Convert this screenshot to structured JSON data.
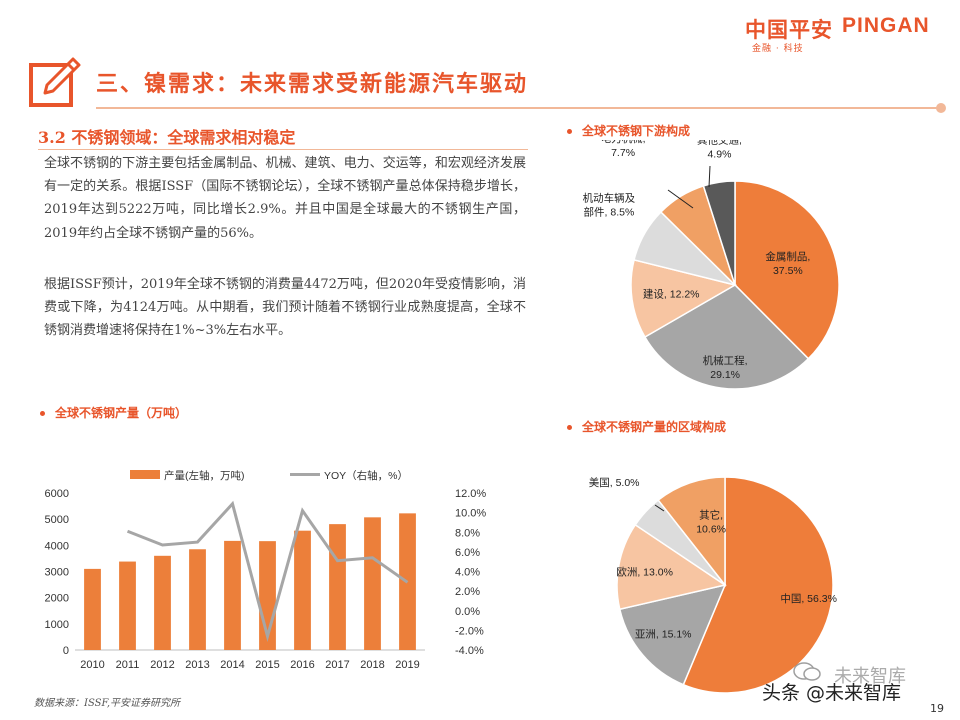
{
  "brand": {
    "name_cn": "中国平安",
    "name_en": "PINGAN",
    "tagline": "金融 · 科技"
  },
  "header": {
    "title": "三、镍需求：未来需求受新能源汽车驱动"
  },
  "section": {
    "title": "3.2 不锈钢领域：全球需求相对稳定",
    "paragraph1": "全球不锈钢的下游主要包括金属制品、机械、建筑、电力、交运等，和宏观经济发展有一定的关系。根据ISSF（国际不锈钢论坛），全球不锈钢产量总体保持稳步增长，2019年达到5222万吨，同比增长2.9%。并且中国是全球最大的不锈钢生产国，2019年约占全球不锈钢产量的56%。",
    "paragraph2": "根据ISSF预计，2019年全球不锈钢的消费量4472万吨，但2020年受疫情影响，消费或下降，为4124万吨。从中期看，我们预计随着不锈钢行业成熟度提高，全球不锈钢消费增速将保持在1%~3%左右水平。"
  },
  "chart_titles": {
    "production": "全球不锈钢产量（万吨）",
    "downstream": "全球不锈钢下游构成",
    "region": "全球不锈钢产量的区域构成"
  },
  "source_note": "数据来源：ISSF,平安证券研究所",
  "page_number": "19",
  "watermark": {
    "line1": "头条 @未来智库",
    "line2": "未来智库"
  },
  "colors": {
    "accent": "#e8552b",
    "bar": "#ec7f3a",
    "line": "#a6a6a6"
  },
  "chart_data": [
    {
      "type": "bar",
      "categories": [
        "2010",
        "2011",
        "2012",
        "2013",
        "2014",
        "2015",
        "2016",
        "2017",
        "2018",
        "2019"
      ],
      "series": [
        {
          "name": "产量(左轴，万吨)",
          "type": "bar",
          "axis": "left",
          "color": "#ec7f3a",
          "values": [
            3100,
            3380,
            3600,
            3850,
            4170,
            4160,
            4560,
            4810,
            5070,
            5222
          ]
        },
        {
          "name": "YOY（右轴，%）",
          "type": "line",
          "axis": "right",
          "color": "#a6a6a6",
          "values": [
            null,
            8.1,
            6.7,
            7.0,
            10.9,
            -2.6,
            10.2,
            5.1,
            5.4,
            2.9
          ]
        }
      ],
      "left_axis": {
        "ticks": [
          "0",
          "1000",
          "2000",
          "3000",
          "4000",
          "5000",
          "6000"
        ],
        "ylim": [
          0,
          6000
        ]
      },
      "right_axis": {
        "ticks": [
          "-4.0%",
          "-2.0%",
          "0.0%",
          "2.0%",
          "4.0%",
          "6.0%",
          "8.0%",
          "10.0%",
          "12.0%"
        ],
        "ylim": [
          -4,
          12
        ]
      },
      "legend_position": "top"
    },
    {
      "type": "pie",
      "slices": [
        {
          "label": "金属制品,",
          "pct_label": "37.5%",
          "value": 37.5,
          "color": "#ee7d3a"
        },
        {
          "label": "机械工程,",
          "pct_label": "29.1%",
          "value": 29.1,
          "color": "#a6a6a6"
        },
        {
          "label": "建设, 12.2%",
          "pct_label": "",
          "value": 12.2,
          "color": "#f7c5a2"
        },
        {
          "label": "机动车辆及",
          "label2": "部件, 8.5%",
          "pct_label": "",
          "value": 8.5,
          "color": "#dcdcdc"
        },
        {
          "label": "电力机械,",
          "pct_label": "7.7%",
          "value": 7.7,
          "color": "#f0a064"
        },
        {
          "label": "其他交通,",
          "pct_label": "4.9%",
          "value": 4.9,
          "color": "#595959"
        }
      ]
    },
    {
      "type": "pie",
      "slices": [
        {
          "label": "中国, 56.3%",
          "value": 56.3,
          "color": "#ee7d3a"
        },
        {
          "label": "亚洲, 15.1%",
          "value": 15.1,
          "color": "#a6a6a6"
        },
        {
          "label": "欧洲, 13.0%",
          "value": 13.0,
          "color": "#f7c5a2"
        },
        {
          "label": "美国, 5.0%",
          "value": 5.0,
          "color": "#dcdcdc"
        },
        {
          "label": "其它,",
          "label2": "10.6%",
          "value": 10.6,
          "color": "#f0a064"
        }
      ]
    }
  ]
}
